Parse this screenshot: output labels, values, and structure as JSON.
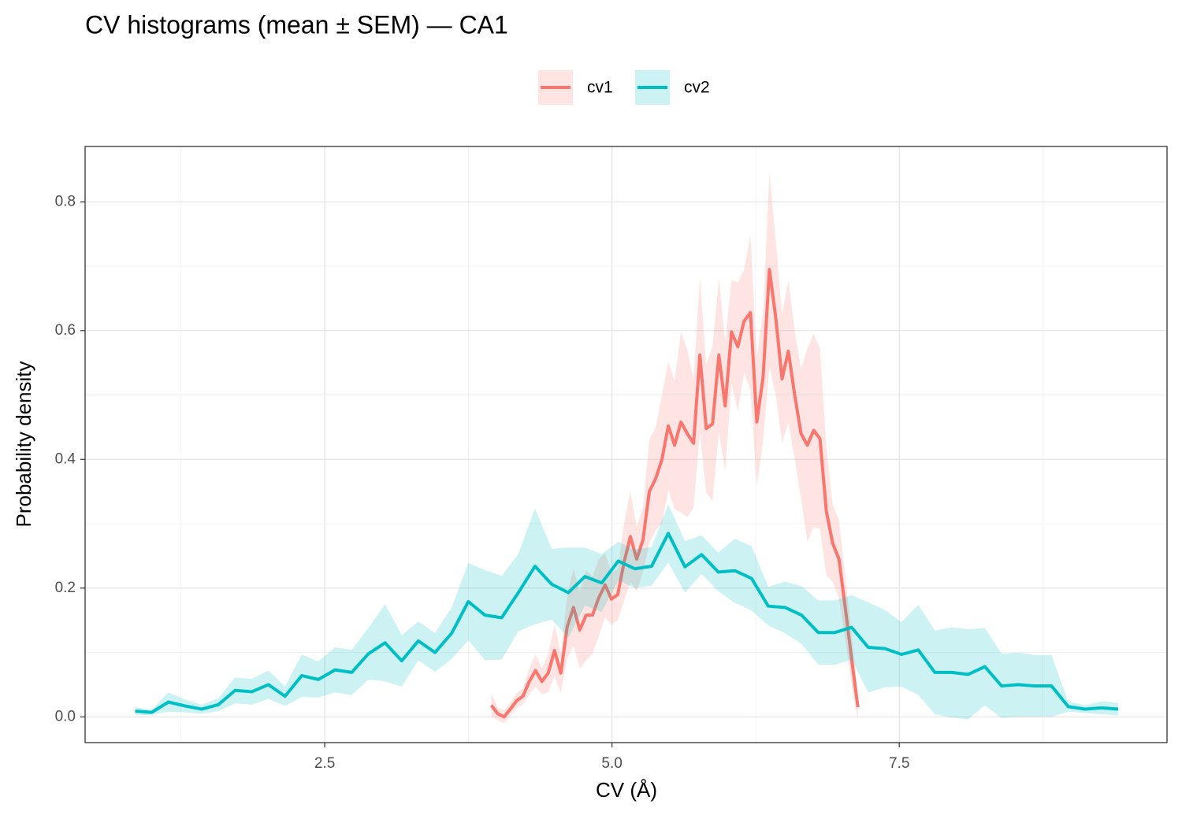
{
  "chart_data": {
    "type": "line",
    "title": "CV histograms (mean ± SEM) — CA1",
    "x_label": "CV (Å)",
    "y_label": "Probability density",
    "xlim": [
      0.415,
      9.83
    ],
    "ylim": [
      -0.04,
      0.886
    ],
    "xticks": [
      2.5,
      {
        "value": 5,
        "label": "5.0"
      },
      7.5
    ],
    "yticks": [
      {
        "value": 0,
        "label": "0.0"
      },
      0.2,
      0.4,
      0.6,
      0.8
    ],
    "grid": true,
    "legend": "top",
    "series": [
      {
        "name": "cv1",
        "color": "#F8766D",
        "x": [
          3.95,
          4.005,
          4.06,
          4.115,
          4.17,
          4.225,
          4.28,
          4.335,
          4.39,
          4.445,
          4.5,
          4.555,
          4.61,
          4.665,
          4.72,
          4.775,
          4.83,
          4.885,
          4.94,
          4.995,
          5.05,
          5.105,
          5.16,
          5.215,
          5.27,
          5.325,
          5.38,
          5.435,
          5.49,
          5.545,
          5.6,
          5.655,
          5.71,
          5.765,
          5.82,
          5.875,
          5.93,
          5.985,
          6.04,
          6.095,
          6.15,
          6.205,
          6.26,
          6.315,
          6.37,
          6.425,
          6.48,
          6.535,
          6.59,
          6.645,
          6.7,
          6.755,
          6.81,
          6.865,
          6.92,
          6.975,
          7.03,
          7.085,
          7.14
        ],
        "values": [
          0.018,
          0.005,
          0.0,
          0.012,
          0.025,
          0.032,
          0.055,
          0.072,
          0.055,
          0.068,
          0.103,
          0.068,
          0.14,
          0.17,
          0.135,
          0.158,
          0.158,
          0.185,
          0.205,
          0.183,
          0.19,
          0.24,
          0.28,
          0.245,
          0.275,
          0.35,
          0.37,
          0.4,
          0.452,
          0.422,
          0.458,
          0.44,
          0.425,
          0.562,
          0.448,
          0.455,
          0.562,
          0.483,
          0.598,
          0.575,
          0.615,
          0.628,
          0.458,
          0.528,
          0.695,
          0.62,
          0.525,
          0.568,
          0.5,
          0.44,
          0.422,
          0.445,
          0.432,
          0.32,
          0.27,
          0.245,
          0.17,
          0.09,
          0.015
        ],
        "sem": [
          0.018,
          0.01,
          0.01,
          0.01,
          0.012,
          0.012,
          0.02,
          0.025,
          0.02,
          0.03,
          0.04,
          0.03,
          0.05,
          0.06,
          0.06,
          0.07,
          0.06,
          0.06,
          0.05,
          0.04,
          0.04,
          0.06,
          0.07,
          0.05,
          0.05,
          0.08,
          0.08,
          0.1,
          0.1,
          0.1,
          0.14,
          0.13,
          0.1,
          0.12,
          0.1,
          0.12,
          0.12,
          0.1,
          0.08,
          0.1,
          0.08,
          0.12,
          0.1,
          0.1,
          0.15,
          0.12,
          0.1,
          0.11,
          0.1,
          0.1,
          0.15,
          0.15,
          0.14,
          0.1,
          0.06,
          0.06,
          0.05,
          0.04,
          0.02
        ]
      },
      {
        "name": "cv2",
        "color": "#00BFC4",
        "x": [
          0.85,
          0.995,
          1.14,
          1.285,
          1.43,
          1.575,
          1.72,
          1.865,
          2.01,
          2.155,
          2.3,
          2.445,
          2.59,
          2.735,
          2.88,
          3.025,
          3.17,
          3.315,
          3.46,
          3.605,
          3.75,
          3.895,
          4.04,
          4.185,
          4.33,
          4.475,
          4.62,
          4.765,
          4.91,
          5.055,
          5.2,
          5.345,
          5.49,
          5.635,
          5.78,
          5.925,
          6.07,
          6.215,
          6.36,
          6.505,
          6.65,
          6.795,
          6.94,
          7.085,
          7.23,
          7.375,
          7.52,
          7.665,
          7.81,
          7.955,
          8.1,
          8.245,
          8.39,
          8.535,
          8.68,
          8.825,
          8.97,
          9.115,
          9.26,
          9.405
        ],
        "values": [
          0.009,
          0.007,
          0.023,
          0.017,
          0.012,
          0.019,
          0.041,
          0.039,
          0.05,
          0.032,
          0.064,
          0.058,
          0.073,
          0.069,
          0.098,
          0.115,
          0.087,
          0.118,
          0.1,
          0.13,
          0.179,
          0.158,
          0.154,
          0.193,
          0.234,
          0.206,
          0.193,
          0.218,
          0.208,
          0.242,
          0.23,
          0.234,
          0.285,
          0.233,
          0.252,
          0.225,
          0.227,
          0.215,
          0.172,
          0.17,
          0.158,
          0.131,
          0.131,
          0.139,
          0.108,
          0.106,
          0.097,
          0.104,
          0.069,
          0.069,
          0.066,
          0.078,
          0.048,
          0.05,
          0.048,
          0.048,
          0.016,
          0.012,
          0.014,
          0.012
        ],
        "sem": [
          0.006,
          0.004,
          0.015,
          0.01,
          0.007,
          0.01,
          0.02,
          0.02,
          0.022,
          0.015,
          0.033,
          0.028,
          0.035,
          0.035,
          0.04,
          0.06,
          0.04,
          0.03,
          0.03,
          0.04,
          0.06,
          0.07,
          0.065,
          0.06,
          0.09,
          0.055,
          0.07,
          0.045,
          0.045,
          0.03,
          0.03,
          0.03,
          0.045,
          0.04,
          0.03,
          0.03,
          0.05,
          0.05,
          0.03,
          0.04,
          0.045,
          0.05,
          0.05,
          0.05,
          0.07,
          0.06,
          0.05,
          0.07,
          0.065,
          0.07,
          0.07,
          0.06,
          0.05,
          0.05,
          0.048,
          0.048,
          0.008,
          0.006,
          0.01,
          0.01
        ]
      }
    ]
  }
}
